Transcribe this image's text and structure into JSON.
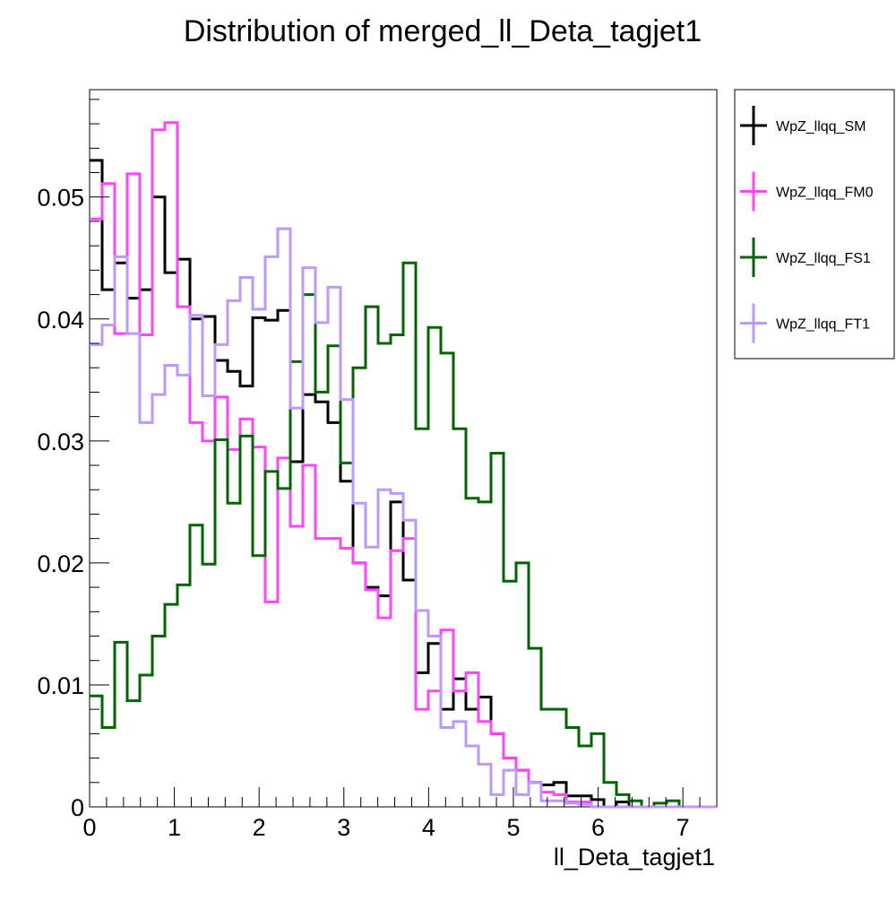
{
  "chart_data": {
    "type": "histogram",
    "title": "Distribution of merged_ll_Deta_tagjet1",
    "xlabel": "ll_Deta_tagjet1",
    "ylabel": "",
    "xlim": [
      0,
      7.4
    ],
    "ylim": [
      0,
      0.0588
    ],
    "bin_width": 0.148,
    "x_ticks": [
      "0",
      "1",
      "2",
      "3",
      "4",
      "5",
      "6",
      "7"
    ],
    "y_ticks": [
      "0",
      "0.01",
      "0.02",
      "0.03",
      "0.04",
      "0.05"
    ],
    "legend_position": "right",
    "series": [
      {
        "name": "WpZ_llqq_SM",
        "color": "#000000",
        "values": [
          0.053,
          0.0424,
          0.0446,
          0.0417,
          0.0424,
          0.05,
          0.0438,
          0.0449,
          0.04,
          0.0402,
          0.0366,
          0.0357,
          0.0345,
          0.0401,
          0.0399,
          0.0407,
          0.0283,
          0.0338,
          0.0332,
          0.0315,
          0.0267,
          0.02,
          0.018,
          0.0173,
          0.025,
          0.0186,
          0.011,
          0.0134,
          0.008,
          0.0105,
          0.008,
          0.009,
          0.006,
          0.004,
          0.003,
          0.002,
          0.0018,
          0.002,
          0.0009,
          0.0009,
          0.0006,
          0.0,
          0.0004,
          0.0,
          0.0,
          0.0,
          0.0,
          0.0,
          0.0,
          0.0
        ]
      },
      {
        "name": "WpZ_llqq_FM0",
        "color": "#ff44ff",
        "values": [
          0.0482,
          0.0511,
          0.0388,
          0.0519,
          0.0387,
          0.0555,
          0.0561,
          0.041,
          0.0315,
          0.03,
          0.0336,
          0.0293,
          0.0318,
          0.0295,
          0.0168,
          0.0286,
          0.023,
          0.028,
          0.022,
          0.022,
          0.0212,
          0.02,
          0.0178,
          0.0155,
          0.021,
          0.022,
          0.008,
          0.0095,
          0.0145,
          0.0095,
          0.011,
          0.007,
          0.006,
          0.004,
          0.003,
          0.002,
          0.0012,
          0.001,
          0.0004,
          0.0004,
          0.0,
          0.0,
          0.0,
          0.0,
          0.0,
          0.0,
          0.0,
          0.0,
          0.0,
          0.0
        ]
      },
      {
        "name": "WpZ_llqq_FS1",
        "color": "#006600",
        "values": [
          0.0091,
          0.0065,
          0.0135,
          0.0087,
          0.0108,
          0.014,
          0.0166,
          0.0182,
          0.0231,
          0.0199,
          0.0301,
          0.0249,
          0.0304,
          0.0206,
          0.0275,
          0.0261,
          0.0365,
          0.042,
          0.034,
          0.0378,
          0.0282,
          0.036,
          0.041,
          0.038,
          0.0387,
          0.0446,
          0.031,
          0.0393,
          0.0372,
          0.031,
          0.0253,
          0.025,
          0.029,
          0.0185,
          0.02,
          0.013,
          0.008,
          0.008,
          0.0065,
          0.005,
          0.006,
          0.002,
          0.001,
          0.0005,
          0.0,
          0.0003,
          0.0005,
          0.0,
          0.0,
          0.0
        ]
      },
      {
        "name": "WpZ_llqq_FT1",
        "color": "#bb99ff",
        "values": [
          0.0379,
          0.0395,
          0.0451,
          0.0388,
          0.0315,
          0.0338,
          0.0362,
          0.0354,
          0.0403,
          0.0337,
          0.0379,
          0.0415,
          0.0434,
          0.0408,
          0.0451,
          0.0474,
          0.0327,
          0.0442,
          0.0397,
          0.0426,
          0.0334,
          0.0249,
          0.0213,
          0.026,
          0.0257,
          0.0235,
          0.0161,
          0.014,
          0.0065,
          0.007,
          0.005,
          0.0035,
          0.001,
          0.003,
          0.001,
          0.002,
          0.0005,
          0.0005,
          0.0003,
          0.0002,
          0.0,
          0.0,
          0.0,
          0.0,
          0.0,
          0.0,
          0.0,
          0.0,
          0.0,
          0.0
        ]
      }
    ]
  }
}
